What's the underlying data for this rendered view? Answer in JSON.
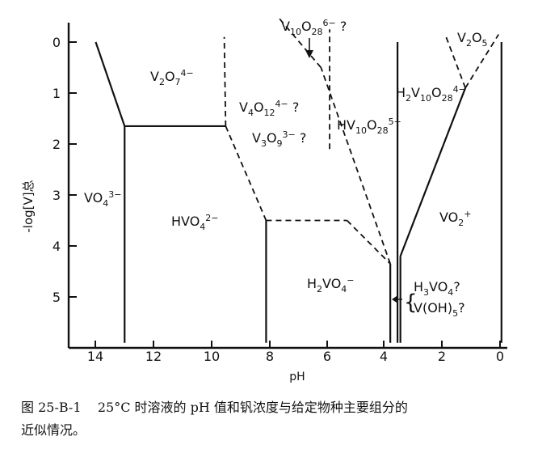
{
  "diagram": {
    "type": "phase-diagram",
    "x_axis": {
      "label": "pH",
      "ticks": [
        "14",
        "12",
        "10",
        "8",
        "6",
        "4",
        "2",
        "0"
      ],
      "range": [
        14.0,
        0.0
      ]
    },
    "y_axis": {
      "label": "-log[V]总",
      "ticks": [
        "0",
        "1",
        "2",
        "3",
        "4",
        "5"
      ],
      "range": [
        0,
        5
      ]
    },
    "species": [
      {
        "id": "vo4",
        "base": "VO",
        "sub": "4",
        "sup": "3−"
      },
      {
        "id": "v2o7",
        "base": "V",
        "sub": "2",
        "mid": "O",
        "sub2": "7",
        "sup": "4−"
      },
      {
        "id": "hvo4",
        "base": "HVO",
        "sub": "4",
        "sup": "2−"
      },
      {
        "id": "v4o12",
        "base": "V",
        "sub": "4",
        "mid": "O",
        "sub2": "12",
        "sup": "4−",
        "suffix": " ?"
      },
      {
        "id": "v3o9",
        "base": "V",
        "sub": "3",
        "mid": "O",
        "sub2": "9",
        "sup": "3−",
        "suffix": " ?"
      },
      {
        "id": "v10o28",
        "base": "V",
        "sub": "10",
        "mid": "O",
        "sub2": "28",
        "sup": "6−",
        "suffix": " ?"
      },
      {
        "id": "hv10o28",
        "base": "HV",
        "sub": "10",
        "mid": "O",
        "sub2": "28",
        "sup": "5−"
      },
      {
        "id": "h2v10o28",
        "base": "H",
        "sub": "2",
        "mid": "V",
        "sub2": "10",
        "mid2": "O",
        "sub3": "28",
        "sup": "4−"
      },
      {
        "id": "h2vo4",
        "base": "H",
        "sub": "2",
        "mid": "VO",
        "sub2": "4",
        "sup": "−"
      },
      {
        "id": "vo2",
        "base": "VO",
        "sub": "2",
        "sup": "+"
      },
      {
        "id": "v2o5",
        "base": "V",
        "sub": "2",
        "mid": "O",
        "sub2": "5"
      },
      {
        "id": "h3vo4",
        "base": "H",
        "sub": "3",
        "mid": "VO",
        "sub2": "4",
        "suffix": "?"
      },
      {
        "id": "voh5",
        "base": "V(OH)",
        "sub": "5",
        "suffix": "?"
      }
    ],
    "boundaries": {
      "solid": [
        [
          [
            14.0,
            0.0
          ],
          [
            13.0,
            1.65
          ]
        ],
        [
          [
            13.0,
            1.65
          ],
          [
            9.5,
            1.65
          ]
        ],
        [
          [
            13.0,
            1.65
          ],
          [
            13.0,
            5.9
          ]
        ],
        [
          [
            8.1,
            3.5
          ],
          [
            8.1,
            5.9
          ]
        ],
        [
          [
            3.55,
            0.0
          ],
          [
            3.55,
            5.9
          ]
        ],
        [
          [
            3.8,
            4.35
          ],
          [
            3.8,
            5.9
          ]
        ],
        [
          [
            3.45,
            4.2
          ],
          [
            3.45,
            5.9
          ]
        ],
        [
          [
            3.45,
            4.2
          ],
          [
            1.2,
            0.9
          ]
        ],
        [
          [
            -0.05,
            0.0
          ],
          [
            -0.05,
            5.9
          ]
        ]
      ],
      "dashed": [
        [
          [
            9.5,
            1.65
          ],
          [
            9.55,
            -0.1
          ]
        ],
        [
          [
            9.5,
            1.65
          ],
          [
            8.1,
            3.5
          ]
        ],
        [
          [
            8.1,
            3.5
          ],
          [
            5.3,
            3.5
          ]
        ],
        [
          [
            5.3,
            3.5
          ],
          [
            3.8,
            4.35
          ]
        ],
        [
          [
            3.8,
            4.35
          ],
          [
            6.2,
            0.5
          ]
        ],
        [
          [
            6.2,
            0.5
          ],
          [
            7.7,
            -0.5
          ]
        ],
        [
          [
            5.9,
            2.1
          ],
          [
            5.9,
            -0.25
          ]
        ],
        [
          [
            1.2,
            0.9
          ],
          [
            0.05,
            -0.15
          ]
        ],
        [
          [
            1.2,
            0.9
          ],
          [
            1.9,
            -0.15
          ]
        ]
      ]
    }
  },
  "caption": {
    "line1": "图 25-B-1    25°C 时溶液的 pH 值和钒浓度与给定物种主要组分的",
    "line2": "近似情况。"
  }
}
